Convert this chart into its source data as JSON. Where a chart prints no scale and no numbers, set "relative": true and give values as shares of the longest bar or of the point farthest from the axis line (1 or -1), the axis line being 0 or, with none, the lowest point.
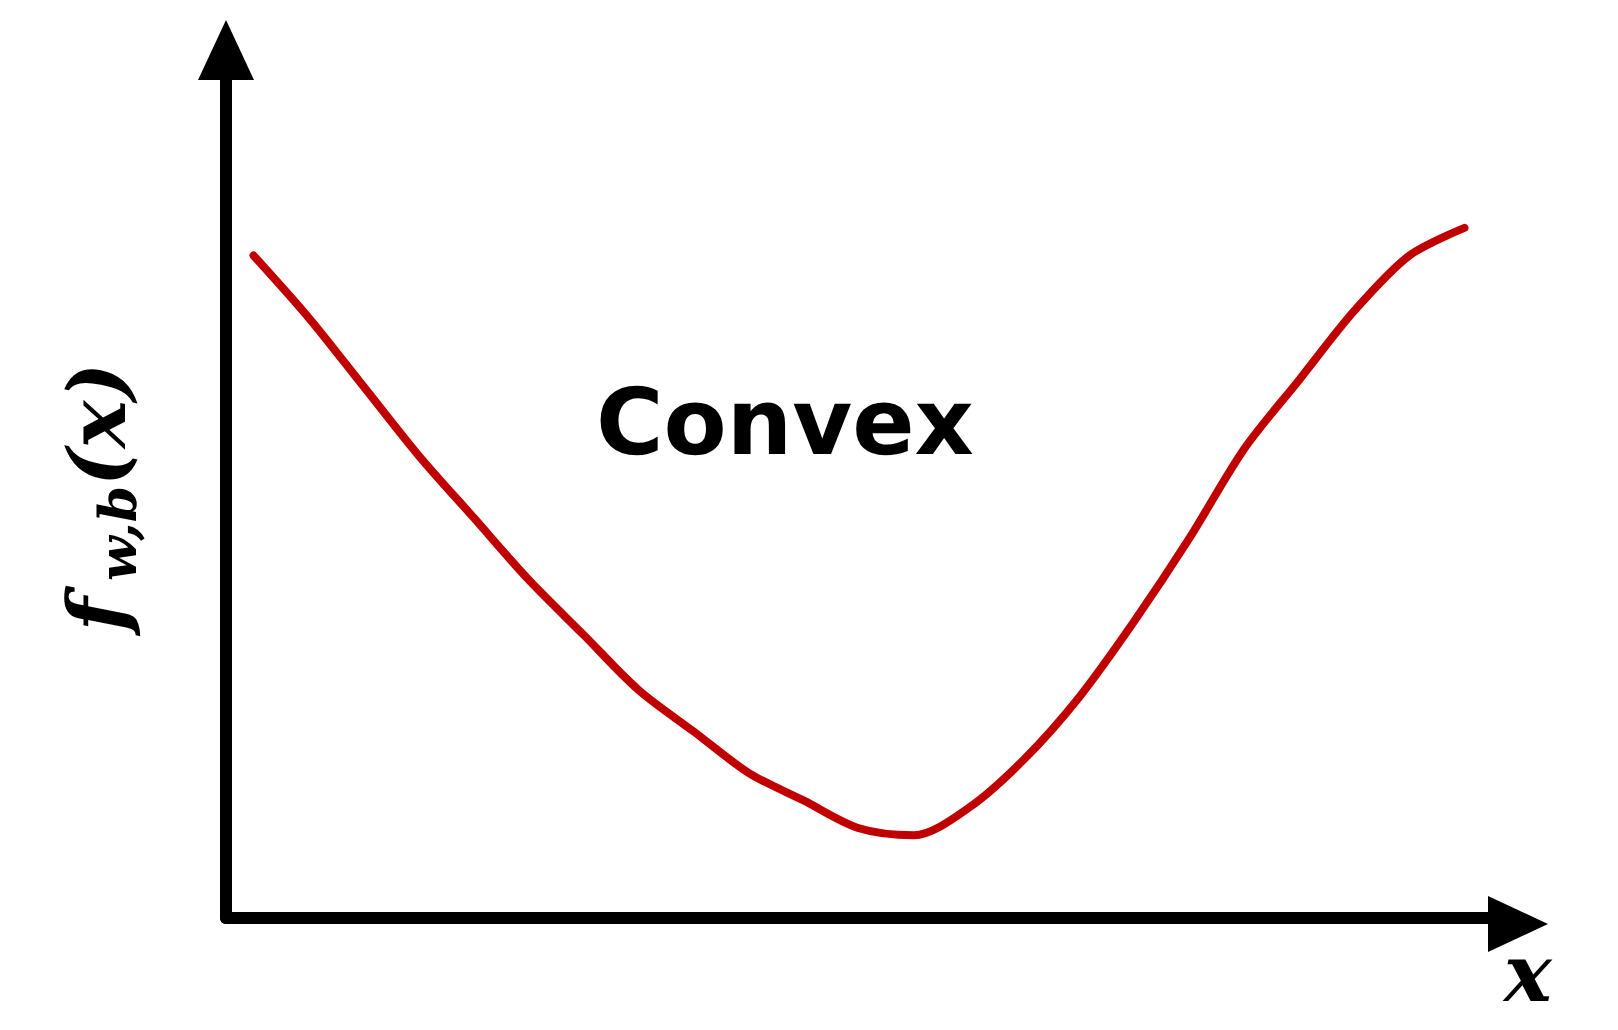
{
  "chart_data": {
    "type": "line",
    "relative": true,
    "xlabel": "x",
    "ylabel": "f$_{w,b}$(x)",
    "annotations": [
      "Convex"
    ],
    "categories": [
      null,
      null,
      null,
      null,
      null,
      null,
      null,
      null,
      null,
      null,
      null,
      null,
      null,
      null,
      null,
      null,
      null,
      null,
      null,
      null,
      null,
      null,
      null
    ],
    "series": [
      {
        "color": "#c00000",
        "values": [
          0.96,
          0.87,
          0.77,
          0.67,
          0.58,
          0.49,
          0.41,
          0.33,
          0.27,
          0.21,
          0.17,
          0.13,
          0.12,
          0.16,
          0.23,
          0.32,
          0.43,
          0.55,
          0.68,
          0.78,
          0.88,
          0.96,
          1
        ]
      }
    ],
    "marker": "none",
    "line_style": "solid"
  }
}
